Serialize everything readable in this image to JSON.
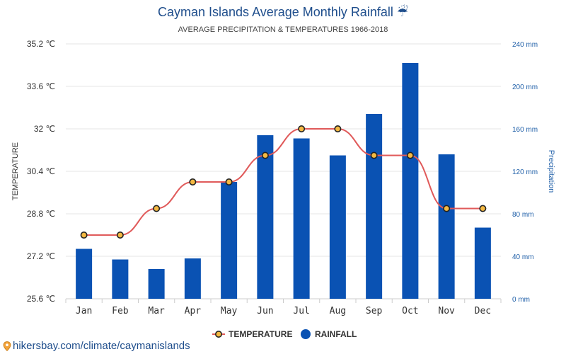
{
  "header": {
    "title": "Cayman Islands Average Monthly Rainfall",
    "umbrella_glyph": "☔",
    "subtitle": "AVERAGE PRECIPITATION & TEMPERATURES 1966-2018"
  },
  "footer": {
    "text": "hikersbay.com/climate/caymanislands",
    "icon": "map-pin-icon"
  },
  "colors": {
    "bar": "#0a52b3",
    "temp_line": "#e05a5a",
    "temp_marker_fill": "#f4b942",
    "temp_marker_stroke": "#222222",
    "grid": "#e6e6e6",
    "right_axis": "#1f5fa8",
    "title": "#1f4e8c"
  },
  "chart_data": {
    "type": "bar",
    "categories": [
      "Jan",
      "Feb",
      "Mar",
      "Apr",
      "May",
      "Jun",
      "Jul",
      "Aug",
      "Sep",
      "Oct",
      "Nov",
      "Dec"
    ],
    "series": [
      {
        "name": "RAINFALL",
        "type": "bar",
        "axis": "right",
        "unit": "mm",
        "values": [
          47,
          37,
          28,
          38,
          110,
          154,
          151,
          135,
          174,
          222,
          136,
          67
        ]
      },
      {
        "name": "TEMPERATURE",
        "type": "line",
        "axis": "left",
        "unit": "℃",
        "values": [
          28.0,
          28.0,
          29.0,
          30.0,
          30.0,
          31.0,
          32.0,
          32.0,
          31.0,
          31.0,
          29.0,
          29.0
        ]
      }
    ],
    "left_axis": {
      "label": "TEMPERATURE",
      "ylim": [
        25.6,
        35.2
      ],
      "ticks": [
        "25.6 ℃",
        "27.2 ℃",
        "28.8 ℃",
        "30.4 ℃",
        "32 ℃",
        "33.6 ℃",
        "35.2 ℃"
      ]
    },
    "right_axis": {
      "label": "Precipitation",
      "ylim": [
        0,
        240
      ],
      "ticks": [
        "0 mm",
        "40 mm",
        "80 mm",
        "120 mm",
        "160 mm",
        "200 mm",
        "240 mm"
      ]
    },
    "grid": true,
    "legend": {
      "position": "bottom",
      "items": [
        "TEMPERATURE",
        "RAINFALL"
      ]
    }
  }
}
